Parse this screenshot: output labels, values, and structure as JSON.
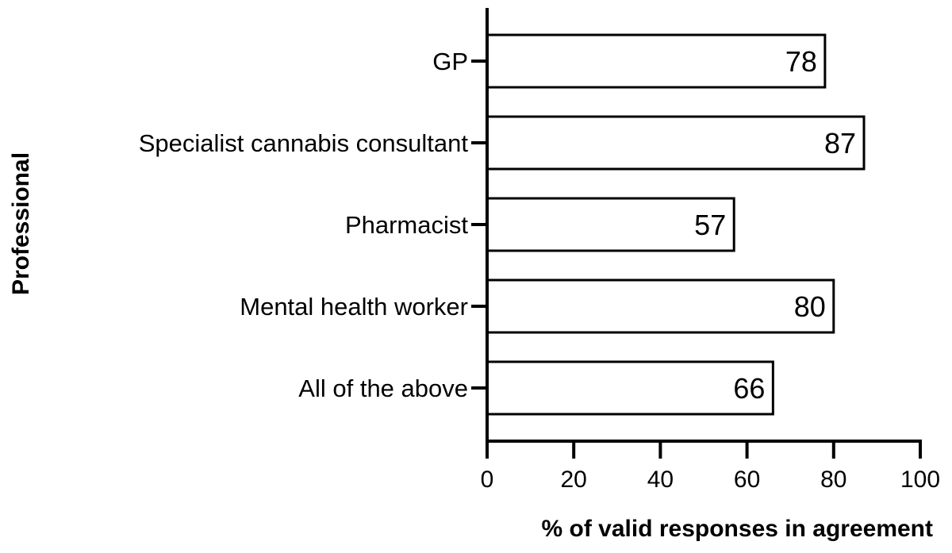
{
  "chart_data": {
    "type": "bar",
    "orientation": "horizontal",
    "categories": [
      "GP",
      "Specialist cannabis consultant",
      "Pharmacist",
      "Mental health worker",
      "All of the above"
    ],
    "values": [
      78,
      87,
      57,
      80,
      66
    ],
    "data_labels": [
      "78",
      "87",
      "57",
      "80",
      "66"
    ],
    "xlabel": "% of valid responses in agreement",
    "ylabel": "Professional",
    "xlim": [
      0,
      100
    ],
    "xticks": [
      "0",
      "20",
      "40",
      "60",
      "80",
      "100"
    ],
    "grid": false,
    "legend": "none",
    "colors": {
      "bar_fill": "#ffffff",
      "bar_stroke": "#000000",
      "axis": "#000000"
    }
  }
}
